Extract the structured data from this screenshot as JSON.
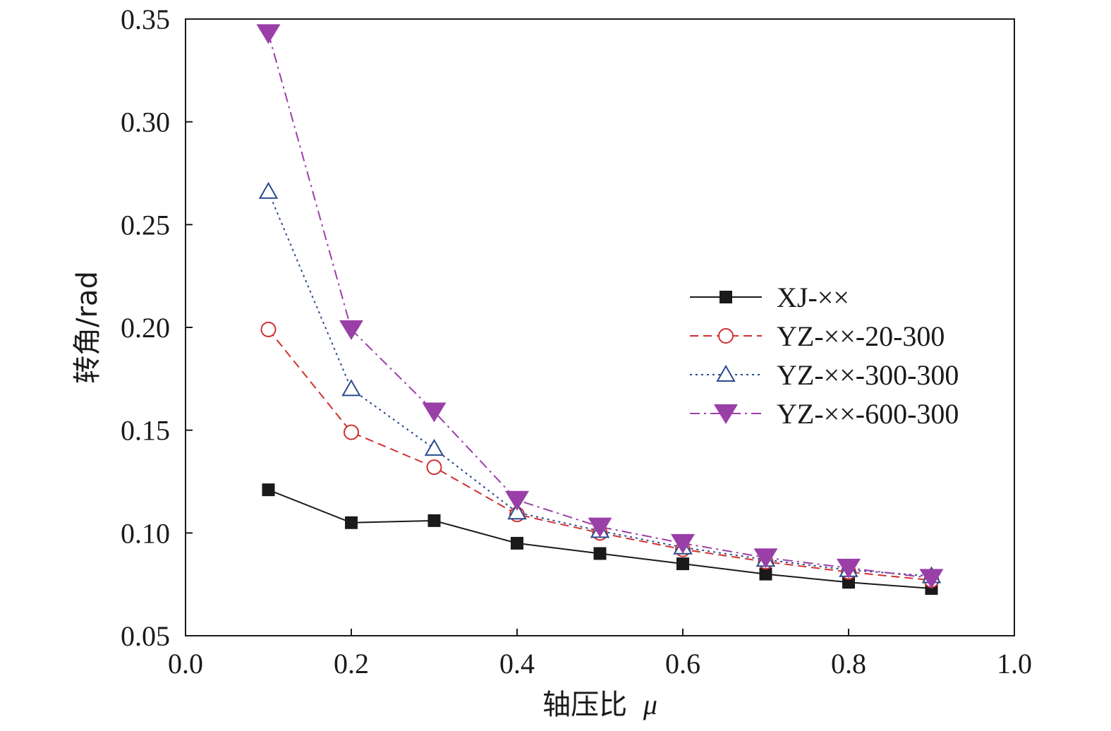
{
  "chart_data": {
    "type": "line",
    "xlabel": "轴压比",
    "xlabel_symbol": "μ",
    "ylabel": "转角/rad",
    "xlim": [
      0.0,
      1.0
    ],
    "ylim": [
      0.05,
      0.35
    ],
    "xticks": [
      "0.0",
      "0.2",
      "0.4",
      "0.6",
      "0.8",
      "1.0"
    ],
    "yticks": [
      "0.05",
      "0.10",
      "0.15",
      "0.20",
      "0.25",
      "0.30",
      "0.35"
    ],
    "grid": false,
    "legend_position": "right",
    "x": [
      0.1,
      0.2,
      0.3,
      0.4,
      0.5,
      0.6,
      0.7,
      0.8,
      0.9
    ],
    "series": [
      {
        "name": "XJ-××",
        "values": [
          0.121,
          0.105,
          0.106,
          0.095,
          0.09,
          0.085,
          0.08,
          0.076,
          0.073
        ],
        "color": "#1a1a1a",
        "line_style": "solid",
        "marker": "filled-square"
      },
      {
        "name": "YZ-××-20-300",
        "values": [
          0.199,
          0.149,
          0.132,
          0.109,
          0.1,
          0.092,
          0.086,
          0.081,
          0.077
        ],
        "color": "#d03030",
        "line_style": "dashed",
        "marker": "open-circle"
      },
      {
        "name": "YZ-××-300-300",
        "values": [
          0.266,
          0.17,
          0.141,
          0.11,
          0.101,
          0.093,
          0.087,
          0.082,
          0.079
        ],
        "color": "#2a4a8c",
        "line_style": "dotted",
        "marker": "open-triangle-up"
      },
      {
        "name": "YZ-××-600-300",
        "values": [
          0.343,
          0.199,
          0.159,
          0.116,
          0.103,
          0.095,
          0.088,
          0.083,
          0.078
        ],
        "color": "#9b3fa8",
        "line_style": "dash-dot",
        "marker": "filled-triangle-down"
      }
    ]
  }
}
